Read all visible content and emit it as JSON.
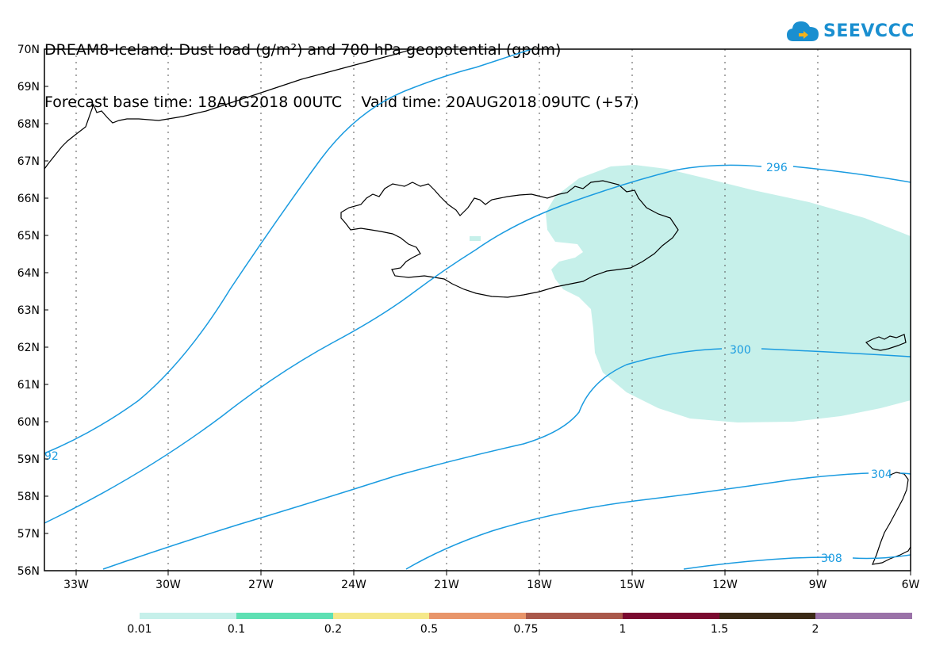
{
  "title": {
    "line1": "DREAM8-Iceland: Dust load (g/m²) and 700 hPa geopotential (gpdm)",
    "line2": "Forecast base time: 18AUG2018 00UTC    Valid time: 20AUG2018 09UTC (+57)"
  },
  "logo": {
    "text": "SEEVCCC",
    "icon": "cloud-icon"
  },
  "map": {
    "lon_range": [
      -34,
      -6
    ],
    "lat_range": [
      56,
      70
    ],
    "lat_labels": [
      "70N",
      "69N",
      "68N",
      "67N",
      "66N",
      "65N",
      "64N",
      "63N",
      "62N",
      "61N",
      "60N",
      "59N",
      "58N",
      "57N",
      "56N"
    ],
    "lon_labels": [
      "33W",
      "30W",
      "27W",
      "24W",
      "21W",
      "18W",
      "15W",
      "12W",
      "9W",
      "6W"
    ],
    "coastline_color": "#000000",
    "contour_color": "#1a9be0",
    "dust_color": "#c6f0ea"
  },
  "contour_labels": [
    "92",
    "296",
    "300",
    "304",
    "308"
  ],
  "colorbar": {
    "colors": [
      "#c6f0ea",
      "#5ee0b3",
      "#f5e88a",
      "#e8956a",
      "#a9584a",
      "#7a0a30",
      "#3b2a16",
      "#9a72a8"
    ],
    "labels": [
      "0.01",
      "0.1",
      "0.2",
      "0.5",
      "0.75",
      "1",
      "1.5",
      "2"
    ]
  }
}
